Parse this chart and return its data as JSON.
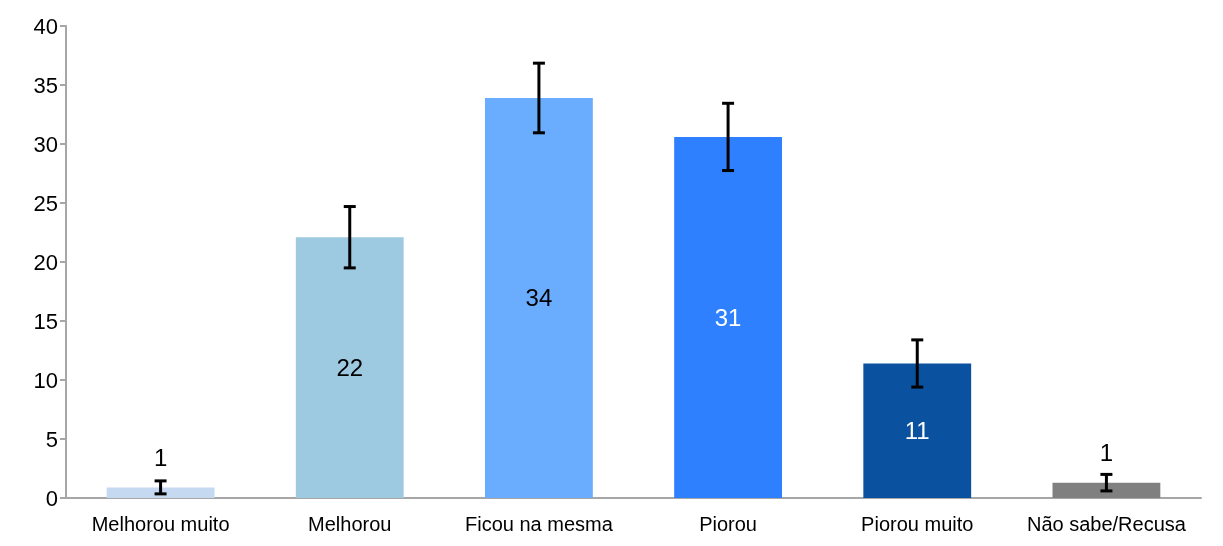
{
  "chart_data": {
    "type": "bar",
    "categories": [
      "Melhorou muito",
      "Melhorou",
      "Ficou na mesma",
      "Piorou",
      "Piorou muito",
      "Não sabe/Recusa"
    ],
    "values": [
      0.9,
      22.1,
      33.9,
      30.6,
      11.4,
      1.3
    ],
    "colors": [
      "#c5d9f1",
      "#9dcae1",
      "#6aadff",
      "#2f80ff",
      "#0a52a0",
      "#808080"
    ],
    "errors": [
      0.55,
      2.6,
      2.95,
      2.85,
      2,
      0.7
    ],
    "value_labels": [
      "1",
      "22",
      "34",
      "31",
      "11",
      "1"
    ],
    "ylim": [
      0,
      40
    ],
    "yticks": [
      0,
      5,
      10,
      15,
      20,
      25,
      30,
      35,
      40
    ],
    "grid": false
  }
}
